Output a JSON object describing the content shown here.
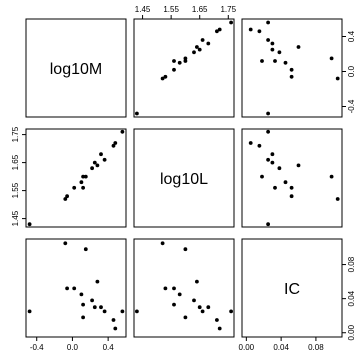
{
  "chart_data": {
    "type": "scatter",
    "subtype": "scatterplot-matrix",
    "variables": [
      "log10M",
      "log10L",
      "IC"
    ],
    "axis_ticks": {
      "log10M": [
        "-0.4",
        "0.0",
        "0.4"
      ],
      "log10L": [
        "1.45",
        "1.55",
        "1.65",
        "1.75"
      ],
      "IC": [
        "0.00",
        "0.04",
        "0.08"
      ]
    },
    "axis_tick_values": {
      "log10M": [
        -0.4,
        0.0,
        0.4
      ],
      "log10L": [
        1.45,
        1.55,
        1.65,
        1.75
      ],
      "IC": [
        0.0,
        0.04,
        0.08
      ]
    },
    "ranges": {
      "log10M": [
        -0.52,
        0.6
      ],
      "log10L": [
        1.42,
        1.77
      ],
      "IC": [
        -0.005,
        0.11
      ]
    },
    "observations": [
      {
        "log10M": -0.48,
        "log10L": 1.43,
        "IC": 0.025
      },
      {
        "log10M": -0.08,
        "log10L": 1.52,
        "IC": 0.105
      },
      {
        "log10M": -0.06,
        "log10L": 1.53,
        "IC": 0.052
      },
      {
        "log10M": 0.02,
        "log10L": 1.56,
        "IC": 0.052
      },
      {
        "log10M": 0.1,
        "log10L": 1.58,
        "IC": 0.045
      },
      {
        "log10M": 0.12,
        "log10L": 1.56,
        "IC": 0.033
      },
      {
        "log10M": 0.12,
        "log10L": 1.6,
        "IC": 0.018
      },
      {
        "log10M": 0.15,
        "log10L": 1.6,
        "IC": 0.098
      },
      {
        "log10M": 0.22,
        "log10L": 1.63,
        "IC": 0.038
      },
      {
        "log10M": 0.25,
        "log10L": 1.65,
        "IC": 0.03
      },
      {
        "log10M": 0.28,
        "log10L": 1.64,
        "IC": 0.06
      },
      {
        "log10M": 0.32,
        "log10L": 1.68,
        "IC": 0.03
      },
      {
        "log10M": 0.36,
        "log10L": 1.66,
        "IC": 0.025
      },
      {
        "log10M": 0.48,
        "log10L": 1.72,
        "IC": 0.005
      },
      {
        "log10M": 0.46,
        "log10L": 1.71,
        "IC": 0.015
      },
      {
        "log10M": 0.56,
        "log10L": 1.76,
        "IC": 0.025
      }
    ],
    "grid": false,
    "legend": false,
    "title": "",
    "xlabel": "",
    "ylabel": ""
  }
}
